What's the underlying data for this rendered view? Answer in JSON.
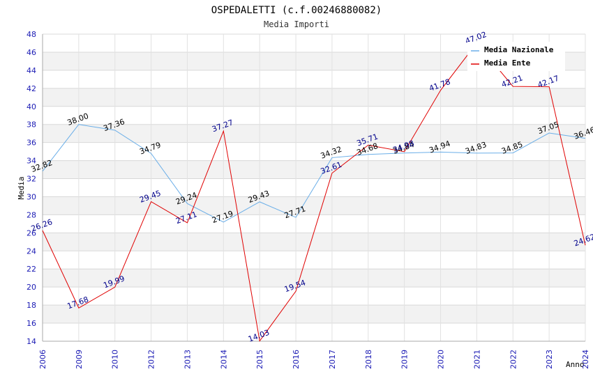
{
  "chart_data": {
    "type": "line",
    "title": "OSPEDALETTI (c.f.00246880082)",
    "subtitle": "Media Importi",
    "xlabel": "Anno",
    "ylabel": "Media",
    "ylim": [
      14,
      48
    ],
    "yticks": [
      14,
      16,
      18,
      20,
      22,
      24,
      26,
      28,
      30,
      32,
      34,
      36,
      38,
      40,
      42,
      44,
      46,
      48
    ],
    "categories": [
      "2006",
      "2009",
      "2010",
      "2012",
      "2013",
      "2014",
      "2015",
      "2016",
      "2017",
      "2018",
      "2019",
      "2020",
      "2021",
      "2022",
      "2023",
      "2024"
    ],
    "series": [
      {
        "name": "Media Nazionale",
        "color": "#6aaee8",
        "label_color": "#000000",
        "values": [
          32.82,
          38.0,
          37.36,
          34.79,
          29.24,
          27.19,
          29.43,
          27.71,
          34.32,
          34.68,
          34.84,
          34.94,
          34.83,
          34.85,
          37.05,
          36.46
        ],
        "labels": [
          "32.82",
          "38.00",
          "37.36",
          "34.79",
          "29.24",
          "27.19",
          "29.43",
          "27.71",
          "34.32",
          "34.68",
          "34.84",
          "34.94",
          "34.83",
          "34.85",
          "37.05",
          "36.46"
        ]
      },
      {
        "name": "Media Ente",
        "color": "#e00000",
        "label_color": "#00008b",
        "values": [
          26.26,
          17.68,
          19.99,
          29.45,
          27.11,
          37.27,
          14.03,
          19.54,
          32.61,
          35.71,
          34.98,
          41.78,
          47.02,
          42.21,
          42.17,
          24.62
        ],
        "labels": [
          "26.26",
          "17.68",
          "19.99",
          "29.45",
          "27.11",
          "37.27",
          "14.03",
          "19.54",
          "32.61",
          "35.71",
          "34.98",
          "41.78",
          "47.02",
          "42.21",
          "42.17",
          "24.62"
        ]
      }
    ],
    "legend": "top-right",
    "grid": true
  }
}
